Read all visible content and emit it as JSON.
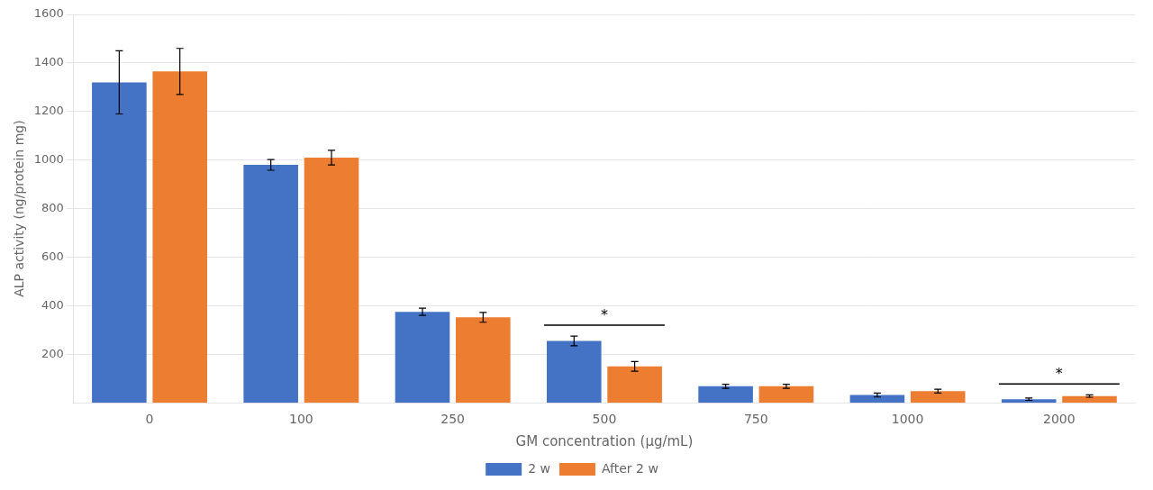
{
  "chart_data": {
    "type": "bar",
    "xlabel": "GM concentration (μg/mL)",
    "ylabel": "ALP activity (ng/protein mg)",
    "categories": [
      "0",
      "100",
      "250",
      "500",
      "750",
      "1000",
      "2000"
    ],
    "series": [
      {
        "name": "2 w",
        "color": "#4472C4",
        "values": [
          1320,
          980,
          375,
          255,
          68,
          32,
          15
        ],
        "errors": [
          130,
          22,
          15,
          20,
          8,
          8,
          5
        ]
      },
      {
        "name": "After 2 w",
        "color": "#ED7D31",
        "values": [
          1365,
          1010,
          352,
          150,
          68,
          48,
          28
        ],
        "errors": [
          95,
          30,
          20,
          20,
          8,
          8,
          5
        ]
      }
    ],
    "ylim": [
      0,
      1600
    ],
    "yticks": [
      200,
      400,
      600,
      800,
      1000,
      1200,
      1400,
      1600
    ],
    "grid": true,
    "legend": "bottom",
    "annotations": [
      {
        "text": "*",
        "x": "500",
        "y": 320
      },
      {
        "text": "*",
        "x": "2000",
        "y": 78
      }
    ]
  }
}
